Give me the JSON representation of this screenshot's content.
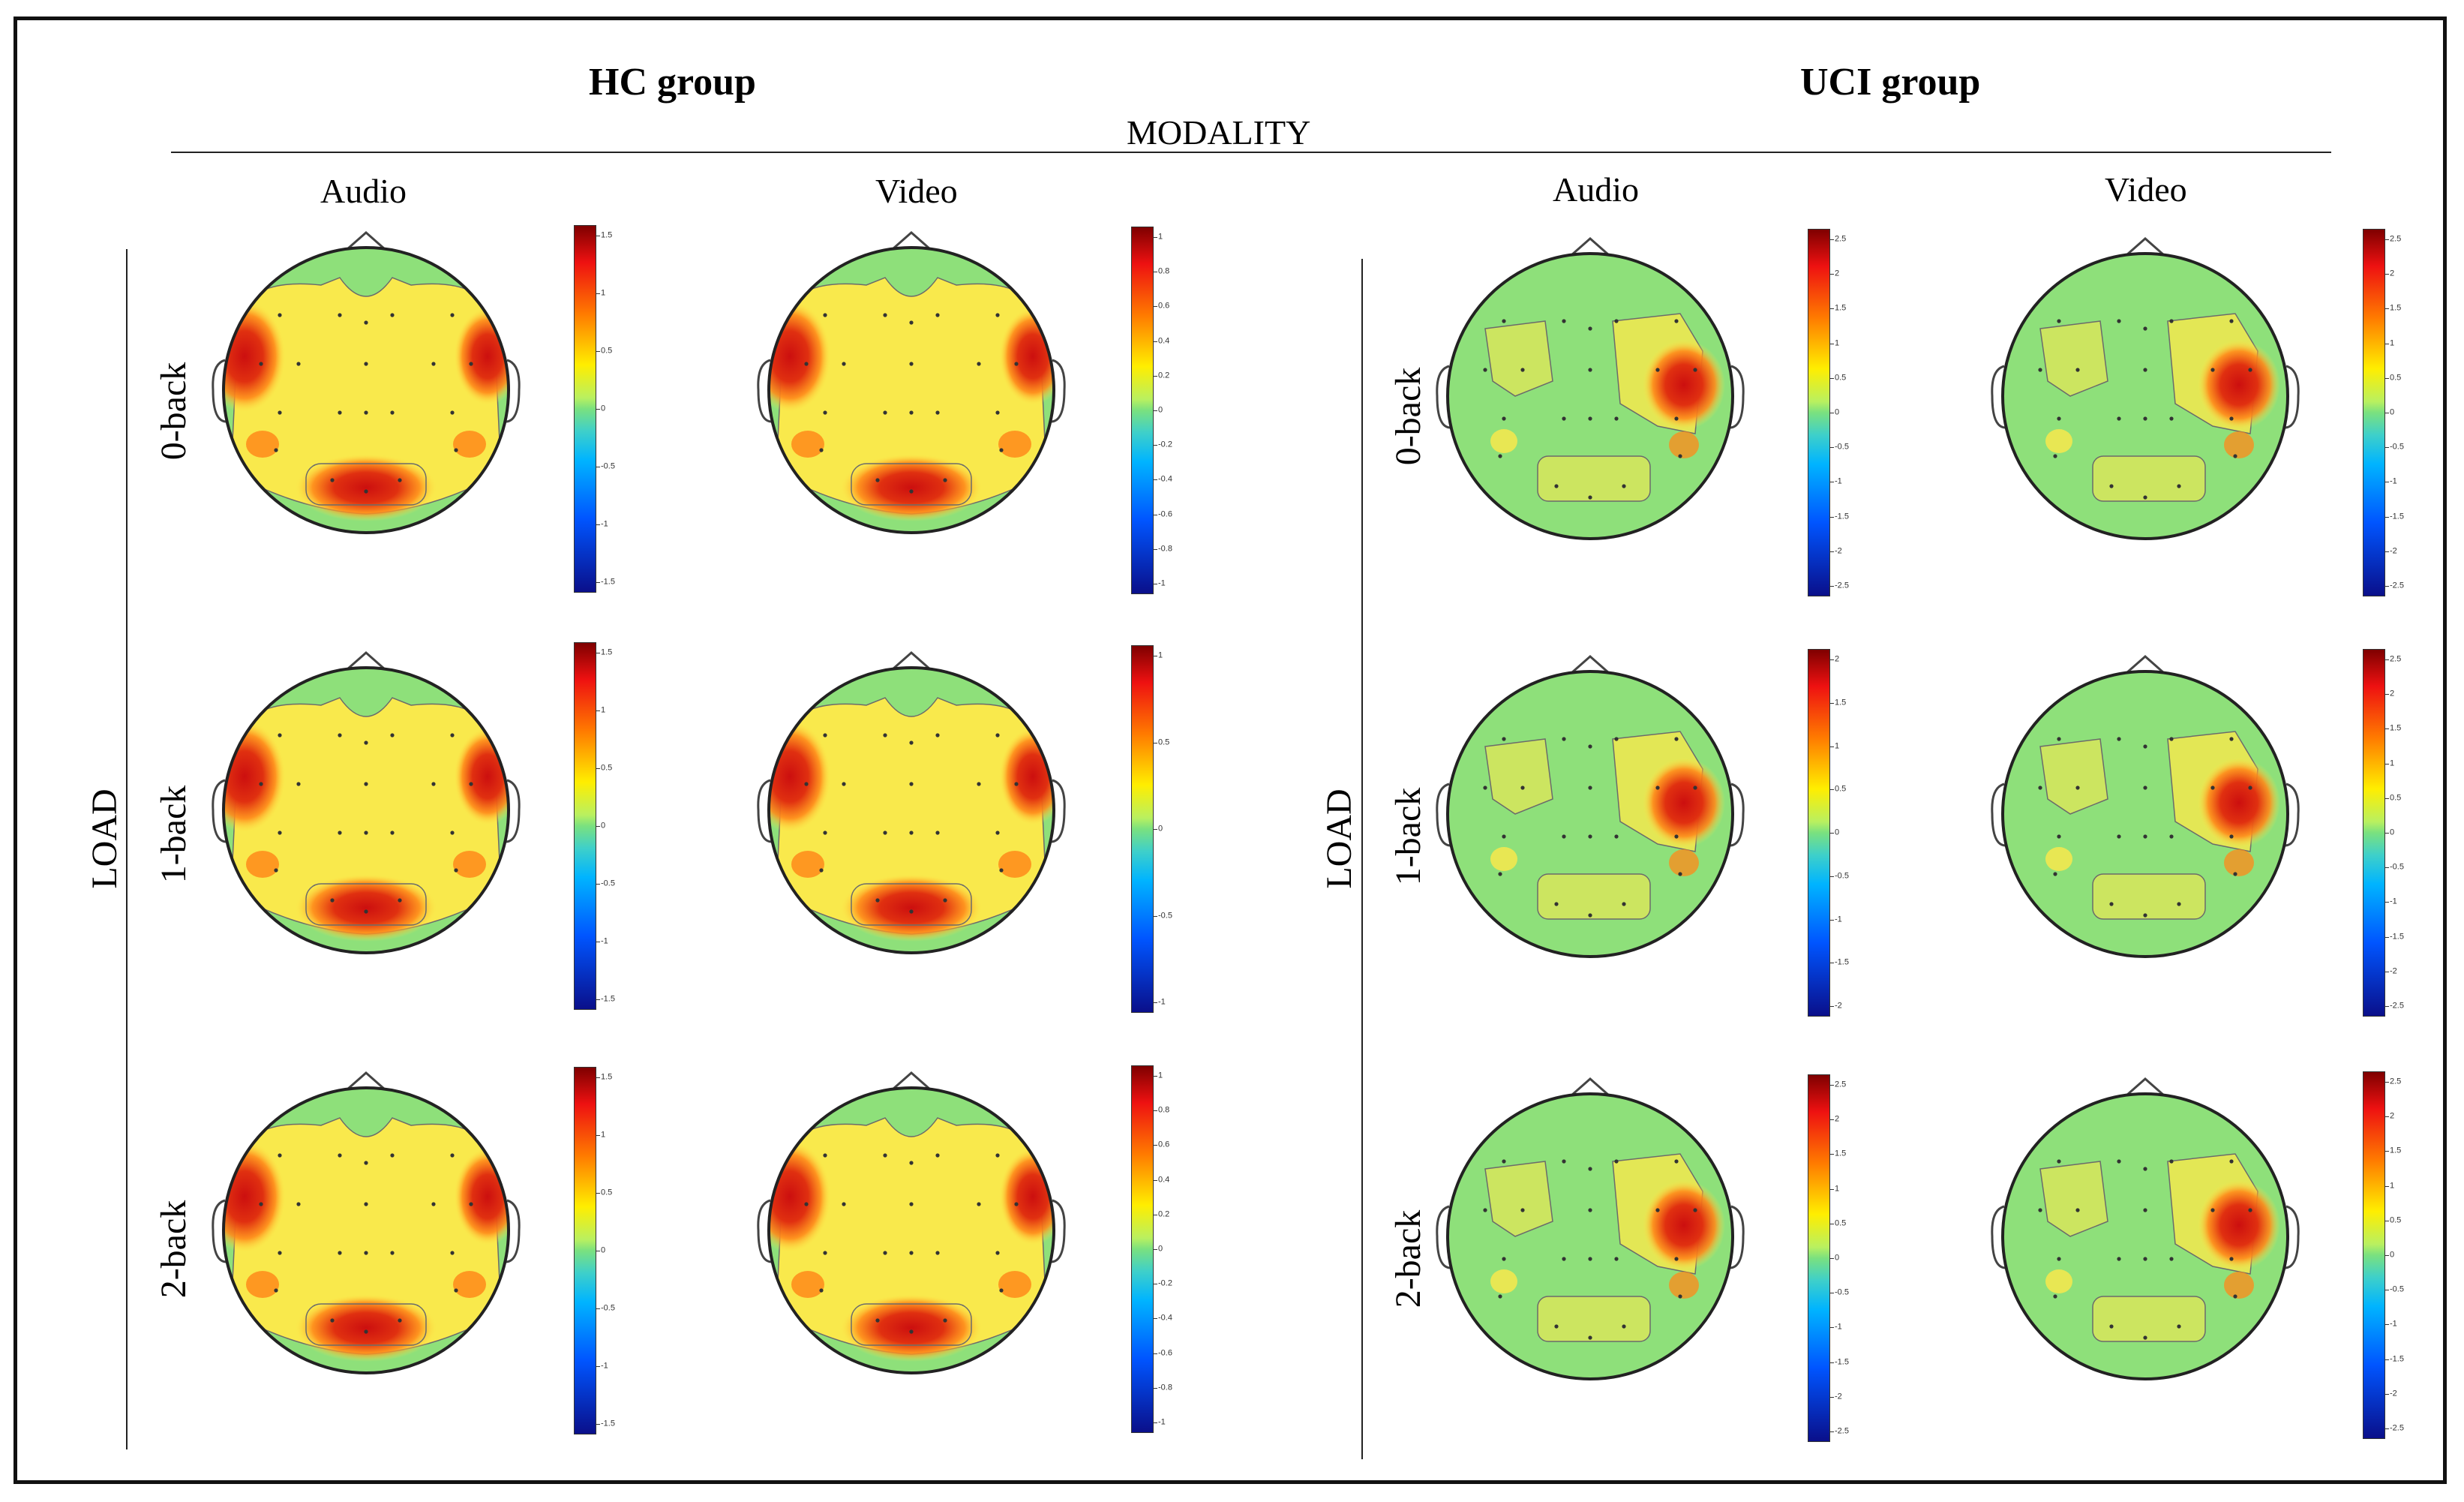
{
  "groups": [
    {
      "title": "HC group",
      "load_label": "LOAD",
      "columns": [
        "Audio",
        "Video"
      ]
    },
    {
      "title": "UCI group",
      "load_label": "LOAD",
      "columns": [
        "Audio",
        "Video"
      ]
    }
  ],
  "modality_label": "MODALITY",
  "rows": [
    "0-back",
    "1-back",
    "2-back"
  ],
  "colorbars": [
    {
      "group": "HC group",
      "column": "Audio",
      "load": "0-back",
      "ticks": [
        "1.5",
        "1",
        "0.5",
        "0",
        "-0.5",
        "-1",
        "-1.5"
      ]
    },
    {
      "group": "HC group",
      "column": "Video",
      "load": "0-back",
      "ticks": [
        "1",
        "0.8",
        "0.6",
        "0.4",
        "0.2",
        "0",
        "-0.2",
        "-0.4",
        "-0.6",
        "-0.8",
        "-1"
      ]
    },
    {
      "group": "UCI group",
      "column": "Audio",
      "load": "0-back",
      "ticks": [
        "2.5",
        "2",
        "1.5",
        "1",
        "0.5",
        "0",
        "-0.5",
        "-1",
        "-1.5",
        "-2",
        "-2.5"
      ]
    },
    {
      "group": "UCI group",
      "column": "Video",
      "load": "0-back",
      "ticks": [
        "2.5",
        "2",
        "1.5",
        "1",
        "0.5",
        "0",
        "-0.5",
        "-1",
        "-1.5",
        "-2",
        "-2.5"
      ]
    },
    {
      "group": "HC group",
      "column": "Audio",
      "load": "1-back",
      "ticks": [
        "1.5",
        "1",
        "0.5",
        "0",
        "-0.5",
        "-1",
        "-1.5"
      ]
    },
    {
      "group": "HC group",
      "column": "Video",
      "load": "1-back",
      "ticks": [
        "1",
        "0.5",
        "0",
        "-0.5",
        "-1"
      ]
    },
    {
      "group": "UCI group",
      "column": "Audio",
      "load": "1-back",
      "ticks": [
        "2",
        "1.5",
        "1",
        "0.5",
        "0",
        "-0.5",
        "-1",
        "-1.5",
        "-2"
      ]
    },
    {
      "group": "UCI group",
      "column": "Video",
      "load": "1-back",
      "ticks": [
        "2.5",
        "2",
        "1.5",
        "1",
        "0.5",
        "0",
        "-0.5",
        "-1",
        "-1.5",
        "-2",
        "-2.5"
      ]
    },
    {
      "group": "HC group",
      "column": "Audio",
      "load": "2-back",
      "ticks": [
        "1.5",
        "1",
        "0.5",
        "0",
        "-0.5",
        "-1",
        "-1.5"
      ]
    },
    {
      "group": "HC group",
      "column": "Video",
      "load": "2-back",
      "ticks": [
        "1",
        "0.8",
        "0.6",
        "0.4",
        "0.2",
        "0",
        "-0.2",
        "-0.4",
        "-0.6",
        "-0.8",
        "-1"
      ]
    },
    {
      "group": "UCI group",
      "column": "Audio",
      "load": "2-back",
      "ticks": [
        "2.5",
        "2",
        "1.5",
        "1",
        "0.5",
        "0",
        "-0.5",
        "-1",
        "-1.5",
        "-2",
        "-2.5"
      ]
    },
    {
      "group": "UCI group",
      "column": "Video",
      "load": "2-back",
      "ticks": [
        "2.5",
        "2",
        "1.5",
        "1",
        "0.5",
        "0",
        "-0.5",
        "-1",
        "-1.5",
        "-2",
        "-2.5"
      ]
    }
  ],
  "colors": {
    "scalp_background": "#8ee07a",
    "activation_mid": "#ffe94a",
    "activation_high": "#ff8a1a",
    "activation_peak": "#cc0f0f",
    "contour": "#6b6b6b",
    "border": "#111111"
  }
}
